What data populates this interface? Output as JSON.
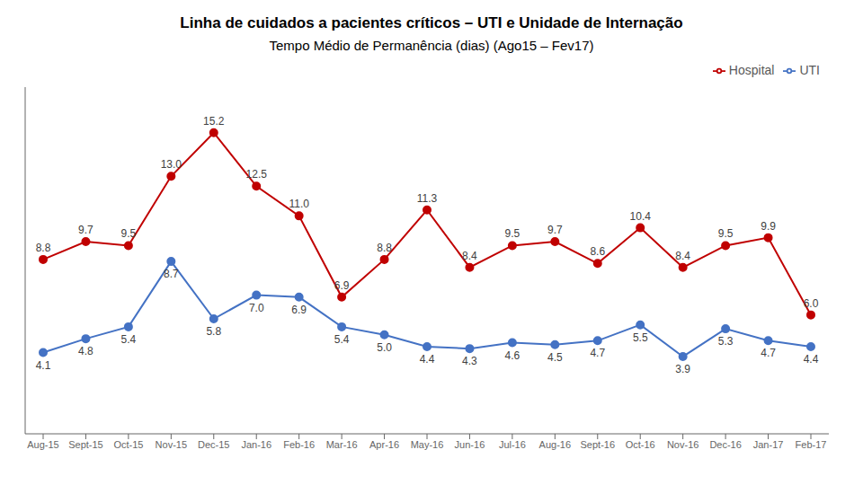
{
  "chart_data": {
    "type": "line",
    "title": "Linha de cuidados a pacientes críticos – UTI e Unidade de Internação",
    "subtitle": "Tempo Médio de Permanência (dias)  (Ago15 – Fev17)",
    "categories": [
      "Aug-15",
      "Sept-15",
      "Oct-15",
      "Nov-15",
      "Dec-15",
      "Jan-16",
      "Feb-16",
      "Mar-16",
      "Apr-16",
      "May-16",
      "Jun-16",
      "Jul-16",
      "Aug-16",
      "Sept-16",
      "Oct-16",
      "Nov-16",
      "Dec-16",
      "Jan-17",
      "Feb-17"
    ],
    "series": [
      {
        "name": "UTI",
        "color": "#4472C4",
        "marker": "circle",
        "values": [
          4.1,
          4.8,
          5.4,
          8.7,
          5.8,
          7.0,
          6.9,
          5.4,
          5.0,
          4.4,
          4.3,
          4.6,
          4.5,
          4.7,
          5.5,
          3.9,
          5.3,
          4.7,
          4.4
        ],
        "value_labels": [
          "4.1",
          "4.8",
          "5.4",
          "8.7",
          "5.8",
          "7.0",
          "6.9",
          "5.4",
          "5.0",
          "4.4",
          "4.3",
          "4.6",
          "4.5",
          "4.7",
          "5.5",
          "3.9",
          "5.3",
          "4.7",
          "4.4"
        ]
      },
      {
        "name": "Hospital",
        "color": "#C00000",
        "marker": "circle",
        "values": [
          8.8,
          9.7,
          9.5,
          13.0,
          15.2,
          12.5,
          11.0,
          6.9,
          8.8,
          11.3,
          8.4,
          9.5,
          9.7,
          8.6,
          10.4,
          8.4,
          9.5,
          9.9,
          6.0
        ],
        "value_labels": [
          "8.8",
          "9.7",
          "9.5",
          "13.0",
          "15.2",
          "12.5",
          "11.0",
          "6.9",
          "8.8",
          "11.3",
          "8.4",
          "9.5",
          "9.7",
          "8.6",
          "10.4",
          "8.4",
          "9.5",
          "9.9",
          "6.0"
        ]
      }
    ],
    "ylim": [
      0,
      17.5
    ],
    "grid": false,
    "legend": "upper right",
    "data_labels": true,
    "tick_labels": "x"
  }
}
